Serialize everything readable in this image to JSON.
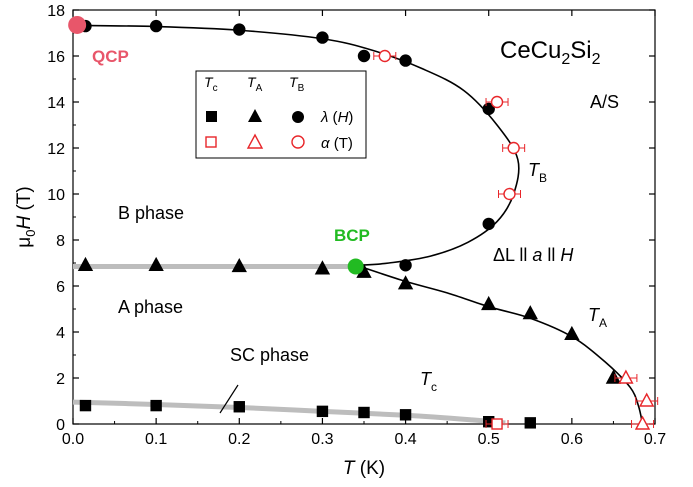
{
  "chart_data": {
    "type": "scatter",
    "title": "CeCu₂Si₂",
    "xlabel": "T (K)",
    "ylabel": "μ₀H (T)",
    "xlim": [
      0.0,
      0.7
    ],
    "ylim": [
      0,
      18
    ],
    "xticks": [
      "0.0",
      "0.1",
      "0.2",
      "0.3",
      "0.4",
      "0.5",
      "0.6",
      "0.7"
    ],
    "yticks": [
      "0",
      "2",
      "4",
      "6",
      "8",
      "10",
      "12",
      "14",
      "16",
      "18"
    ],
    "grid": false,
    "legend_placement": "top-center",
    "legend": {
      "col_headers": [
        "Tc",
        "TA",
        "TB"
      ],
      "row_labels": [
        "λ (H)",
        "α (T)"
      ]
    },
    "series": [
      {
        "name": "Tc λ(H)",
        "marker": "square",
        "filled": true,
        "color": "#000000",
        "points": [
          [
            0.015,
            0.8
          ],
          [
            0.1,
            0.8
          ],
          [
            0.2,
            0.75
          ],
          [
            0.3,
            0.55
          ],
          [
            0.35,
            0.5
          ],
          [
            0.4,
            0.4
          ],
          [
            0.5,
            0.1
          ],
          [
            0.55,
            0.05
          ]
        ]
      },
      {
        "name": "Tc α(T)",
        "marker": "square",
        "filled": false,
        "color": "#e8262a",
        "points": [
          [
            0.51,
            0.0
          ]
        ]
      },
      {
        "name": "TA λ(H)",
        "marker": "triangle",
        "filled": true,
        "color": "#000000",
        "points": [
          [
            0.015,
            6.9
          ],
          [
            0.1,
            6.9
          ],
          [
            0.2,
            6.85
          ],
          [
            0.3,
            6.75
          ],
          [
            0.35,
            6.6
          ],
          [
            0.4,
            6.1
          ],
          [
            0.5,
            5.2
          ],
          [
            0.55,
            4.8
          ],
          [
            0.6,
            3.9
          ],
          [
            0.65,
            2.0
          ]
        ]
      },
      {
        "name": "TA α(T)",
        "marker": "triangle",
        "filled": false,
        "color": "#e8262a",
        "points": [
          [
            0.665,
            2.0
          ],
          [
            0.69,
            1.0
          ],
          [
            0.685,
            0.0
          ]
        ]
      },
      {
        "name": "TB λ(H)",
        "marker": "circle",
        "filled": true,
        "color": "#000000",
        "points": [
          [
            0.015,
            17.3
          ],
          [
            0.1,
            17.3
          ],
          [
            0.2,
            17.15
          ],
          [
            0.3,
            16.8
          ],
          [
            0.35,
            16.0
          ],
          [
            0.4,
            15.8
          ],
          [
            0.5,
            13.7
          ],
          [
            0.5,
            8.7
          ],
          [
            0.4,
            6.9
          ]
        ]
      },
      {
        "name": "TB α(T)",
        "marker": "circle",
        "filled": false,
        "color": "#e8262a",
        "points": [
          [
            0.375,
            16.0
          ],
          [
            0.51,
            14.0
          ],
          [
            0.53,
            12.0
          ],
          [
            0.525,
            10.0
          ]
        ]
      }
    ],
    "curves": {
      "TB": [
        [
          0.0,
          17.33
        ],
        [
          0.1,
          17.28
        ],
        [
          0.2,
          17.12
        ],
        [
          0.3,
          16.75
        ],
        [
          0.36,
          16.25
        ],
        [
          0.42,
          15.45
        ],
        [
          0.47,
          14.5
        ],
        [
          0.51,
          13.0
        ],
        [
          0.535,
          11.5
        ],
        [
          0.53,
          10.0
        ],
        [
          0.51,
          8.8
        ],
        [
          0.475,
          7.9
        ],
        [
          0.43,
          7.3
        ],
        [
          0.38,
          7.0
        ],
        [
          0.345,
          6.9
        ]
      ],
      "TA": [
        [
          0.345,
          6.85
        ],
        [
          0.4,
          6.2
        ],
        [
          0.45,
          5.7
        ],
        [
          0.5,
          5.1
        ],
        [
          0.55,
          4.6
        ],
        [
          0.6,
          3.8
        ],
        [
          0.64,
          2.7
        ],
        [
          0.67,
          1.6
        ],
        [
          0.68,
          0.8
        ],
        [
          0.685,
          0.0
        ]
      ],
      "SC_guide": [
        [
          0.0,
          0.95
        ],
        [
          0.1,
          0.85
        ],
        [
          0.2,
          0.72
        ],
        [
          0.3,
          0.55
        ],
        [
          0.4,
          0.38
        ],
        [
          0.48,
          0.18
        ],
        [
          0.52,
          0.05
        ]
      ],
      "A_B_boundary": [
        [
          0.0,
          6.85
        ],
        [
          0.34,
          6.85
        ]
      ]
    },
    "special_points": [
      {
        "label": "QCP",
        "x": 0.005,
        "y": 17.35,
        "color": "#e8566a"
      },
      {
        "label": "BCP",
        "x": 0.34,
        "y": 6.85,
        "color": "#22bb22"
      }
    ],
    "annotations": {
      "A/S": "A/S",
      "B phase": "B phase",
      "A phase": "A phase",
      "SC phase": "SC phase",
      "TB": "TB",
      "TA": "TA",
      "Tc": "Tc",
      "geometry": "ΔL ll a ll H"
    }
  }
}
